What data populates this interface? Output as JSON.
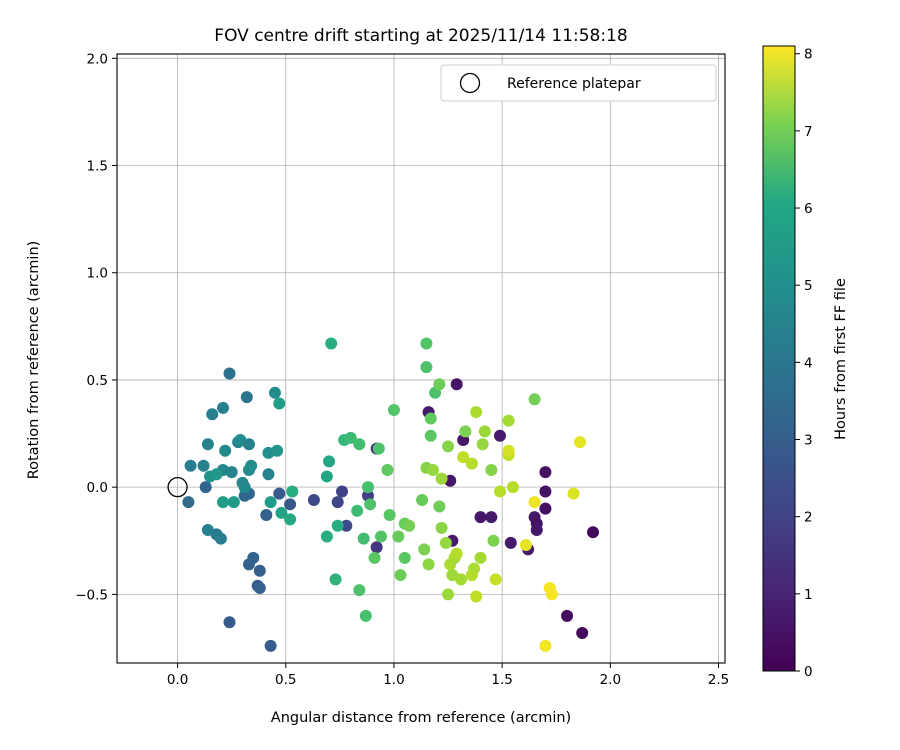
{
  "chart_data": {
    "type": "scatter",
    "title": "FOV centre drift starting at 2025/11/14 11:58:18",
    "xlabel": "Angular distance from reference (arcmin)",
    "ylabel": "Rotation from reference (arcmin)",
    "xlim": [
      -0.28,
      2.53
    ],
    "ylim": [
      -0.82,
      2.02
    ],
    "xticks": [
      0.0,
      0.5,
      1.0,
      1.5,
      2.0,
      2.5
    ],
    "xtick_labels": [
      "0.0",
      "0.5",
      "1.0",
      "1.5",
      "2.0",
      "2.5"
    ],
    "yticks": [
      -0.5,
      0.0,
      0.5,
      1.0,
      1.5,
      2.0
    ],
    "ytick_labels": [
      "−0.5",
      "0.0",
      "0.5",
      "1.0",
      "1.5",
      "2.0"
    ],
    "grid": true,
    "legend": {
      "location": "top-right",
      "label": "Reference platepar"
    },
    "reference_point": {
      "x": 0.0,
      "y": 0.0
    },
    "colorbar": {
      "label": "Hours from first FF file",
      "colormap": "viridis",
      "range": [
        0,
        8.1
      ],
      "ticks": [
        0,
        1,
        2,
        3,
        4,
        5,
        6,
        7,
        8
      ],
      "tick_labels": [
        "0",
        "1",
        "2",
        "3",
        "4",
        "5",
        "6",
        "7",
        "8"
      ]
    },
    "points": [
      {
        "x": 1.32,
        "y": 0.22,
        "c": 0.5
      },
      {
        "x": 1.29,
        "y": 0.48,
        "c": 0.5
      },
      {
        "x": 1.16,
        "y": 0.35,
        "c": 0.6
      },
      {
        "x": 1.26,
        "y": 0.03,
        "c": 0.5
      },
      {
        "x": 1.27,
        "y": -0.25,
        "c": 0.6
      },
      {
        "x": 1.4,
        "y": -0.14,
        "c": 0.5
      },
      {
        "x": 1.45,
        "y": -0.14,
        "c": 0.6
      },
      {
        "x": 1.49,
        "y": 0.24,
        "c": 0.6
      },
      {
        "x": 1.54,
        "y": -0.26,
        "c": 0.6
      },
      {
        "x": 1.62,
        "y": -0.29,
        "c": 0.6
      },
      {
        "x": 1.65,
        "y": -0.14,
        "c": 0.5
      },
      {
        "x": 1.66,
        "y": -0.17,
        "c": 0.4
      },
      {
        "x": 1.66,
        "y": -0.2,
        "c": 0.5
      },
      {
        "x": 1.7,
        "y": 0.07,
        "c": 0.4
      },
      {
        "x": 1.7,
        "y": -0.02,
        "c": 0.4
      },
      {
        "x": 1.7,
        "y": -0.1,
        "c": 0.3
      },
      {
        "x": 1.8,
        "y": -0.6,
        "c": 0.2
      },
      {
        "x": 1.87,
        "y": -0.68,
        "c": 0.2
      },
      {
        "x": 1.92,
        "y": -0.21,
        "c": 0.2
      },
      {
        "x": 0.92,
        "y": 0.18,
        "c": 1.2
      },
      {
        "x": 0.92,
        "y": -0.28,
        "c": 1.3
      },
      {
        "x": 0.88,
        "y": -0.04,
        "c": 1.5
      },
      {
        "x": 0.76,
        "y": -0.02,
        "c": 1.6
      },
      {
        "x": 0.74,
        "y": -0.07,
        "c": 1.7
      },
      {
        "x": 0.78,
        "y": -0.18,
        "c": 1.8
      },
      {
        "x": 0.63,
        "y": -0.06,
        "c": 1.8
      },
      {
        "x": 0.52,
        "y": -0.08,
        "c": 2.2
      },
      {
        "x": 0.47,
        "y": -0.03,
        "c": 2.3
      },
      {
        "x": 0.41,
        "y": -0.13,
        "c": 2.5
      },
      {
        "x": 0.43,
        "y": -0.74,
        "c": 2.3
      },
      {
        "x": 0.24,
        "y": -0.63,
        "c": 2.3
      },
      {
        "x": 0.38,
        "y": -0.39,
        "c": 2.4
      },
      {
        "x": 0.37,
        "y": -0.46,
        "c": 2.4
      },
      {
        "x": 0.38,
        "y": -0.47,
        "c": 2.5
      },
      {
        "x": 0.35,
        "y": -0.33,
        "c": 2.6
      },
      {
        "x": 0.33,
        "y": -0.36,
        "c": 2.5
      },
      {
        "x": 0.33,
        "y": -0.03,
        "c": 2.6
      },
      {
        "x": 0.31,
        "y": -0.04,
        "c": 2.7
      },
      {
        "x": 0.13,
        "y": 0.0,
        "c": 2.6
      },
      {
        "x": 0.05,
        "y": -0.07,
        "c": 2.8
      },
      {
        "x": 0.24,
        "y": 0.53,
        "c": 3.0
      },
      {
        "x": 0.32,
        "y": 0.42,
        "c": 3.1
      },
      {
        "x": 0.21,
        "y": 0.37,
        "c": 3.5
      },
      {
        "x": 0.16,
        "y": 0.34,
        "c": 3.4
      },
      {
        "x": 0.18,
        "y": -0.22,
        "c": 3.3
      },
      {
        "x": 0.2,
        "y": -0.24,
        "c": 3.4
      },
      {
        "x": 0.14,
        "y": -0.2,
        "c": 3.5
      },
      {
        "x": 0.06,
        "y": 0.1,
        "c": 3.4
      },
      {
        "x": 0.12,
        "y": 0.1,
        "c": 3.5
      },
      {
        "x": 0.14,
        "y": 0.2,
        "c": 3.6
      },
      {
        "x": 0.22,
        "y": 0.17,
        "c": 3.8
      },
      {
        "x": 0.21,
        "y": 0.08,
        "c": 3.7
      },
      {
        "x": 0.25,
        "y": 0.07,
        "c": 3.6
      },
      {
        "x": 0.28,
        "y": 0.21,
        "c": 3.5
      },
      {
        "x": 0.29,
        "y": 0.22,
        "c": 3.9
      },
      {
        "x": 0.33,
        "y": 0.2,
        "c": 3.6
      },
      {
        "x": 0.33,
        "y": 0.08,
        "c": 3.8
      },
      {
        "x": 0.34,
        "y": 0.1,
        "c": 3.9
      },
      {
        "x": 0.31,
        "y": 0.0,
        "c": 3.8
      },
      {
        "x": 0.3,
        "y": 0.02,
        "c": 3.7
      },
      {
        "x": 0.42,
        "y": 0.06,
        "c": 3.6
      },
      {
        "x": 0.42,
        "y": 0.16,
        "c": 4.0
      },
      {
        "x": 0.45,
        "y": 0.44,
        "c": 3.9
      },
      {
        "x": 0.46,
        "y": 0.17,
        "c": 4.1
      },
      {
        "x": 0.47,
        "y": 0.39,
        "c": 4.5
      },
      {
        "x": 0.43,
        "y": -0.07,
        "c": 4.4
      },
      {
        "x": 0.48,
        "y": -0.12,
        "c": 4.7
      },
      {
        "x": 0.52,
        "y": -0.15,
        "c": 4.9
      },
      {
        "x": 0.53,
        "y": -0.02,
        "c": 5.0
      },
      {
        "x": 0.15,
        "y": 0.05,
        "c": 4.2
      },
      {
        "x": 0.18,
        "y": 0.06,
        "c": 4.3
      },
      {
        "x": 0.21,
        "y": -0.07,
        "c": 4.5
      },
      {
        "x": 0.26,
        "y": -0.07,
        "c": 4.4
      },
      {
        "x": 0.69,
        "y": 0.05,
        "c": 4.8
      },
      {
        "x": 0.7,
        "y": 0.12,
        "c": 4.8
      },
      {
        "x": 0.69,
        "y": -0.23,
        "c": 5.0
      },
      {
        "x": 0.71,
        "y": 0.67,
        "c": 5.0
      },
      {
        "x": 0.73,
        "y": -0.43,
        "c": 5.2
      },
      {
        "x": 0.74,
        "y": -0.18,
        "c": 5.0
      },
      {
        "x": 0.77,
        "y": 0.22,
        "c": 5.4
      },
      {
        "x": 0.8,
        "y": 0.23,
        "c": 5.5
      },
      {
        "x": 0.83,
        "y": -0.11,
        "c": 5.5
      },
      {
        "x": 0.84,
        "y": 0.2,
        "c": 5.6
      },
      {
        "x": 0.84,
        "y": -0.48,
        "c": 5.8
      },
      {
        "x": 0.86,
        "y": -0.24,
        "c": 5.6
      },
      {
        "x": 0.87,
        "y": -0.6,
        "c": 5.7
      },
      {
        "x": 0.88,
        "y": 0.0,
        "c": 5.7
      },
      {
        "x": 0.89,
        "y": -0.08,
        "c": 5.8
      },
      {
        "x": 0.91,
        "y": -0.33,
        "c": 6.0
      },
      {
        "x": 0.93,
        "y": 0.18,
        "c": 5.8
      },
      {
        "x": 0.94,
        "y": -0.23,
        "c": 5.9
      },
      {
        "x": 0.97,
        "y": 0.08,
        "c": 6.1
      },
      {
        "x": 0.98,
        "y": -0.13,
        "c": 6.0
      },
      {
        "x": 1.0,
        "y": 0.36,
        "c": 5.9
      },
      {
        "x": 1.02,
        "y": -0.23,
        "c": 6.2
      },
      {
        "x": 1.03,
        "y": -0.41,
        "c": 6.3
      },
      {
        "x": 1.05,
        "y": -0.17,
        "c": 6.2
      },
      {
        "x": 1.05,
        "y": -0.33,
        "c": 6.0
      },
      {
        "x": 1.07,
        "y": -0.18,
        "c": 6.4
      },
      {
        "x": 1.13,
        "y": -0.06,
        "c": 6.2
      },
      {
        "x": 1.14,
        "y": -0.29,
        "c": 6.5
      },
      {
        "x": 1.15,
        "y": 0.67,
        "c": 5.9
      },
      {
        "x": 1.15,
        "y": 0.56,
        "c": 5.8
      },
      {
        "x": 1.15,
        "y": 0.09,
        "c": 6.6
      },
      {
        "x": 1.16,
        "y": -0.36,
        "c": 6.7
      },
      {
        "x": 1.17,
        "y": 0.32,
        "c": 6.1
      },
      {
        "x": 1.17,
        "y": 0.24,
        "c": 6.0
      },
      {
        "x": 1.18,
        "y": 0.08,
        "c": 6.8
      },
      {
        "x": 1.19,
        "y": 0.44,
        "c": 5.8
      },
      {
        "x": 1.21,
        "y": -0.09,
        "c": 6.3
      },
      {
        "x": 1.21,
        "y": 0.48,
        "c": 6.3
      },
      {
        "x": 1.22,
        "y": -0.19,
        "c": 6.7
      },
      {
        "x": 1.22,
        "y": 0.04,
        "c": 6.9
      },
      {
        "x": 1.24,
        "y": -0.26,
        "c": 6.8
      },
      {
        "x": 1.25,
        "y": -0.5,
        "c": 6.9
      },
      {
        "x": 1.25,
        "y": 0.19,
        "c": 6.6
      },
      {
        "x": 1.26,
        "y": -0.36,
        "c": 7.1
      },
      {
        "x": 1.28,
        "y": -0.33,
        "c": 7.0
      },
      {
        "x": 1.27,
        "y": -0.41,
        "c": 6.9
      },
      {
        "x": 1.29,
        "y": -0.31,
        "c": 7.2
      },
      {
        "x": 1.31,
        "y": -0.43,
        "c": 7.0
      },
      {
        "x": 1.32,
        "y": 0.14,
        "c": 7.3
      },
      {
        "x": 1.33,
        "y": 0.26,
        "c": 6.5
      },
      {
        "x": 1.36,
        "y": -0.41,
        "c": 7.2
      },
      {
        "x": 1.36,
        "y": 0.11,
        "c": 7.2
      },
      {
        "x": 1.37,
        "y": -0.38,
        "c": 7.1
      },
      {
        "x": 1.38,
        "y": -0.51,
        "c": 7.3
      },
      {
        "x": 1.38,
        "y": 0.35,
        "c": 7.1
      },
      {
        "x": 1.4,
        "y": -0.33,
        "c": 7.0
      },
      {
        "x": 1.41,
        "y": 0.2,
        "c": 6.8
      },
      {
        "x": 1.42,
        "y": 0.26,
        "c": 6.9
      },
      {
        "x": 1.45,
        "y": 0.08,
        "c": 6.6
      },
      {
        "x": 1.46,
        "y": -0.25,
        "c": 6.5
      },
      {
        "x": 1.47,
        "y": -0.43,
        "c": 7.4
      },
      {
        "x": 1.49,
        "y": -0.02,
        "c": 7.2
      },
      {
        "x": 1.53,
        "y": 0.15,
        "c": 7.3
      },
      {
        "x": 1.53,
        "y": 0.31,
        "c": 7.0
      },
      {
        "x": 1.53,
        "y": 0.17,
        "c": 7.6
      },
      {
        "x": 1.55,
        "y": 0.0,
        "c": 7.2
      },
      {
        "x": 1.61,
        "y": -0.27,
        "c": 7.8
      },
      {
        "x": 1.65,
        "y": 0.41,
        "c": 6.4
      },
      {
        "x": 1.65,
        "y": -0.07,
        "c": 7.9
      },
      {
        "x": 1.7,
        "y": -0.74,
        "c": 8.0
      },
      {
        "x": 1.72,
        "y": -0.47,
        "c": 8.0
      },
      {
        "x": 1.73,
        "y": -0.5,
        "c": 8.0
      },
      {
        "x": 1.83,
        "y": -0.03,
        "c": 7.7
      },
      {
        "x": 1.86,
        "y": 0.21,
        "c": 7.8
      }
    ]
  }
}
